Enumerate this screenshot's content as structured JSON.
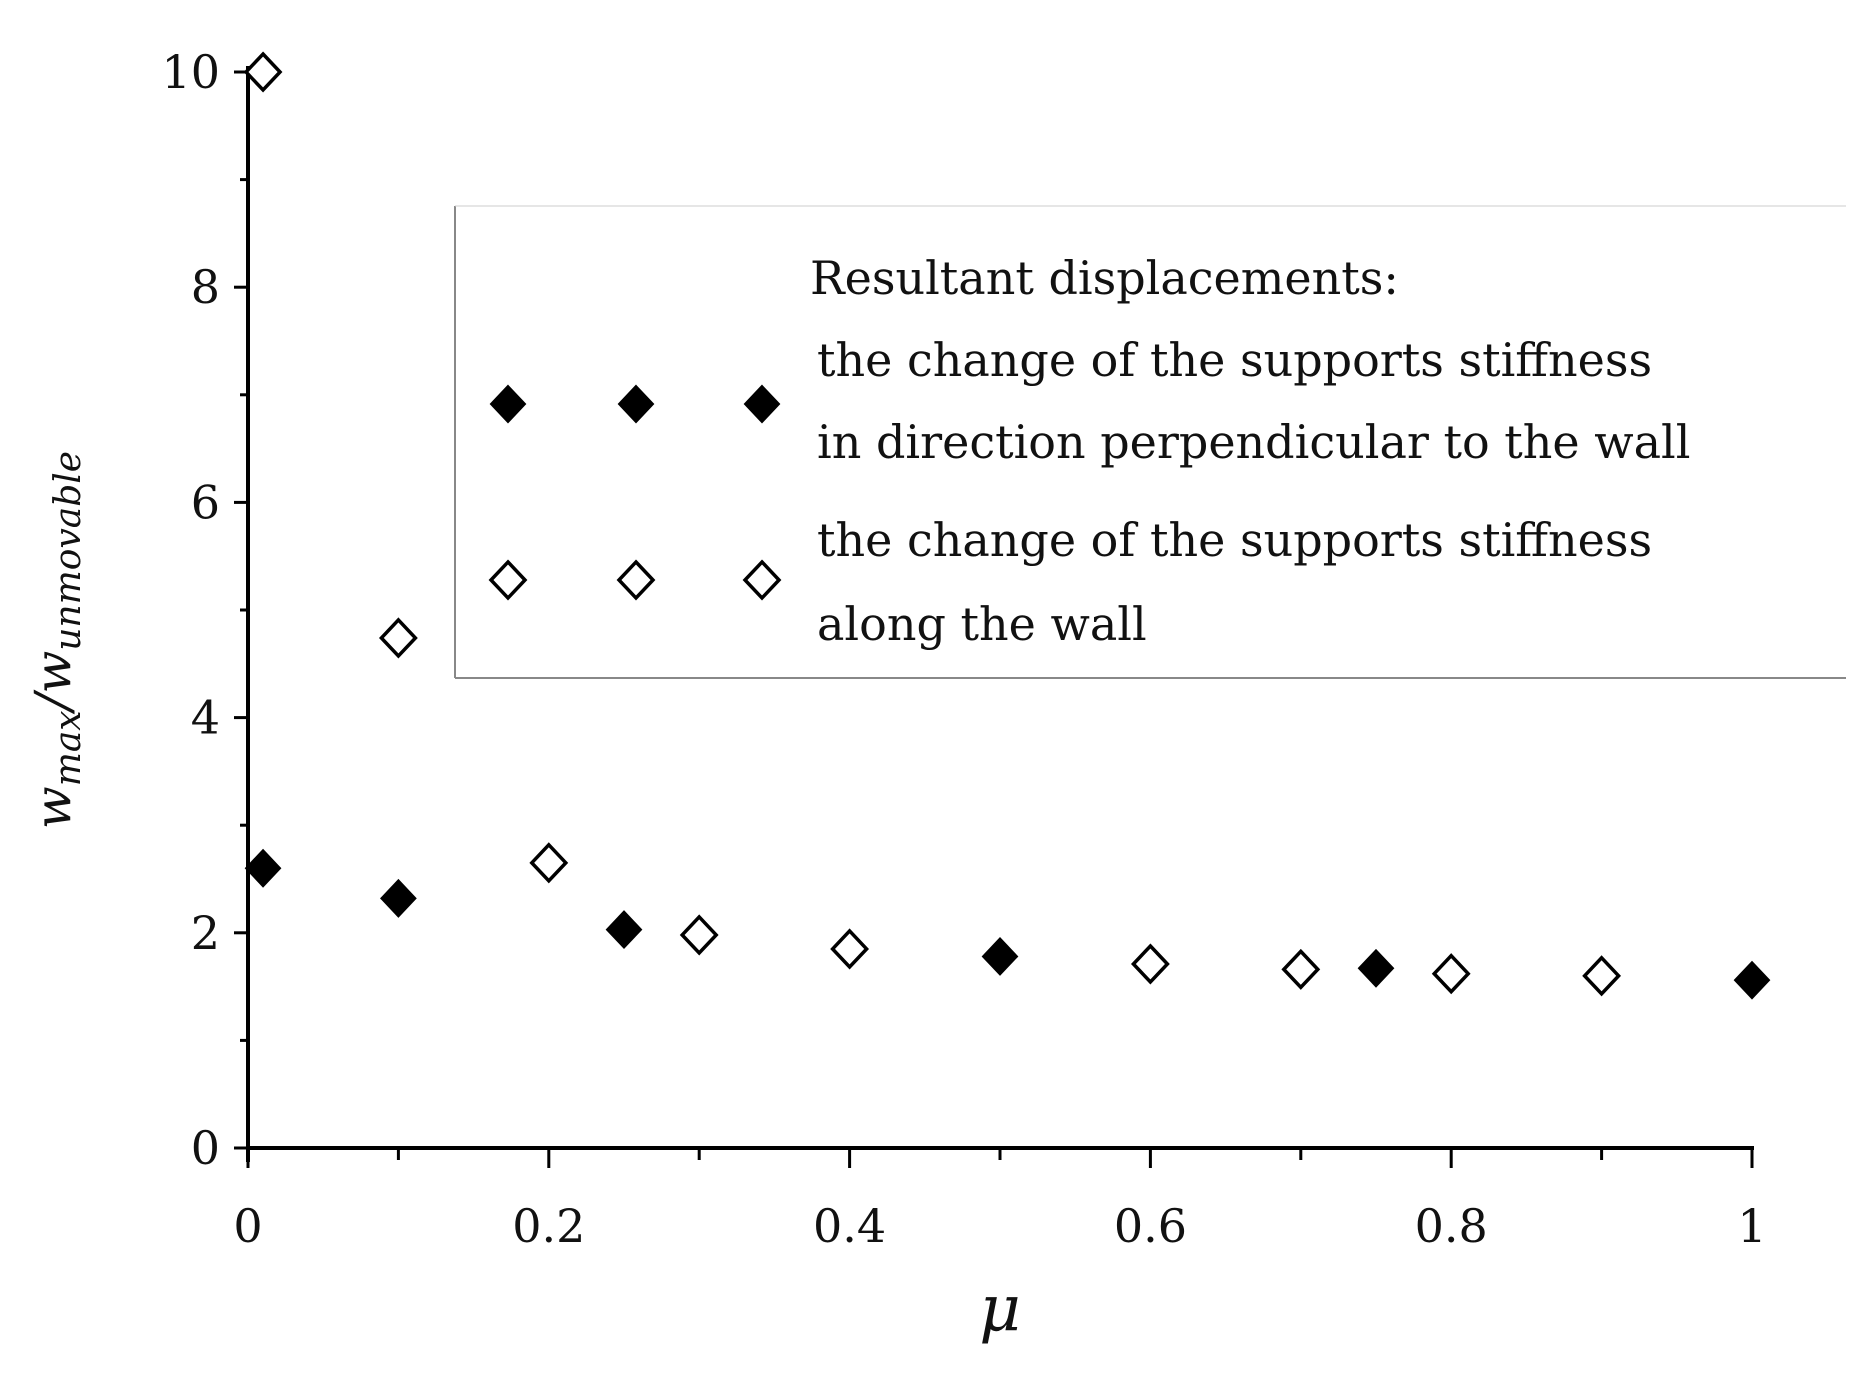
{
  "chart_data": {
    "type": "scatter",
    "title": "",
    "xlabel": "μ",
    "ylabel": {
      "base": "w",
      "sub1": "max",
      "sep": "/w",
      "sub2": "unmovable"
    },
    "xlim": [
      0,
      1
    ],
    "ylim": [
      0,
      10
    ],
    "x_ticks": [
      {
        "value": 0,
        "label": "0"
      },
      {
        "value": 0.2,
        "label": "0.2"
      },
      {
        "value": 0.4,
        "label": "0.4"
      },
      {
        "value": 0.6,
        "label": "0.6"
      },
      {
        "value": 0.8,
        "label": "0.8"
      },
      {
        "value": 1,
        "label": "1"
      }
    ],
    "y_ticks": [
      {
        "value": 0,
        "label": "0"
      },
      {
        "value": 2,
        "label": "2"
      },
      {
        "value": 4,
        "label": "4"
      },
      {
        "value": 6,
        "label": "6"
      },
      {
        "value": 8,
        "label": "8"
      },
      {
        "value": 10,
        "label": "10"
      }
    ],
    "grid": false,
    "legend": {
      "placement": "top-right",
      "title": "Resultant displacements:",
      "entries": [
        {
          "series": 0,
          "lines": [
            "the change of the supports stiffness",
            "in direction perpendicular to the wall"
          ]
        },
        {
          "series": 1,
          "lines": [
            "the change of the supports stiffness",
            "along the wall"
          ]
        }
      ]
    },
    "series": [
      {
        "marker": "filled-diamond",
        "color": "#000000",
        "x": [
          0.01,
          0.1,
          0.25,
          0.5,
          0.75,
          1.0
        ],
        "y": [
          2.6,
          2.32,
          2.03,
          1.78,
          1.67,
          1.56
        ]
      },
      {
        "marker": "open-diamond",
        "color": "#000000",
        "x": [
          0.01,
          0.1,
          0.2,
          0.3,
          0.4,
          0.6,
          0.7,
          0.8,
          0.9
        ],
        "y": [
          10.0,
          4.74,
          2.65,
          1.98,
          1.85,
          1.71,
          1.66,
          1.62,
          1.6
        ]
      }
    ]
  }
}
